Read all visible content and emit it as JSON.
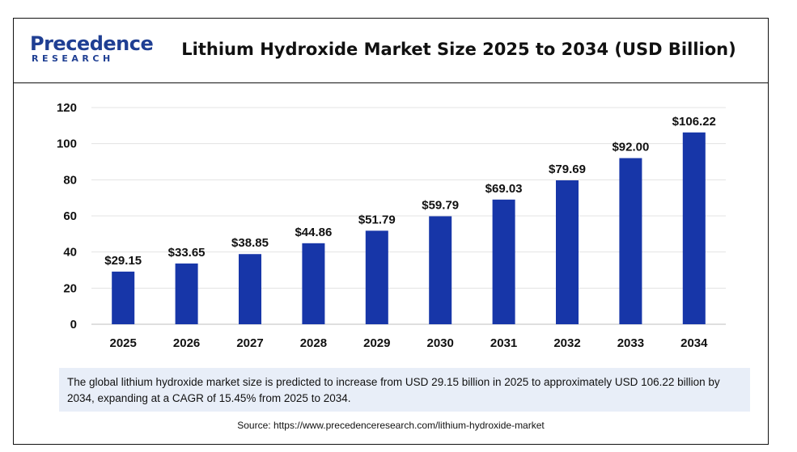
{
  "logo": {
    "line1": "Precedence",
    "line2": "RESEARCH"
  },
  "chart_data": {
    "type": "bar",
    "title": "Lithium Hydroxide Market Size 2025 to 2034 (USD Billion)",
    "categories": [
      "2025",
      "2026",
      "2027",
      "2028",
      "2029",
      "2030",
      "2031",
      "2032",
      "2033",
      "2034"
    ],
    "values": [
      29.15,
      33.65,
      38.85,
      44.86,
      51.79,
      59.79,
      69.03,
      79.69,
      92.0,
      106.22
    ],
    "data_labels": [
      "$29.15",
      "$33.65",
      "$38.85",
      "$44.86",
      "$51.79",
      "$59.79",
      "$69.03",
      "$79.69",
      "$92.00",
      "$106.22"
    ],
    "xlabel": "",
    "ylabel": "",
    "ylim": [
      0,
      120
    ],
    "yticks": [
      0,
      20,
      40,
      60,
      80,
      100,
      120
    ],
    "grid": true,
    "bar_color": "#1736a8"
  },
  "note": "The global lithium hydroxide market size is predicted to increase from USD 29.15 billion in 2025 to approximately USD 106.22 billion by 2034, expanding at a CAGR of 15.45% from 2025 to 2034.",
  "source": "Source: https://www.precedenceresearch.com/lithium-hydroxide-market"
}
